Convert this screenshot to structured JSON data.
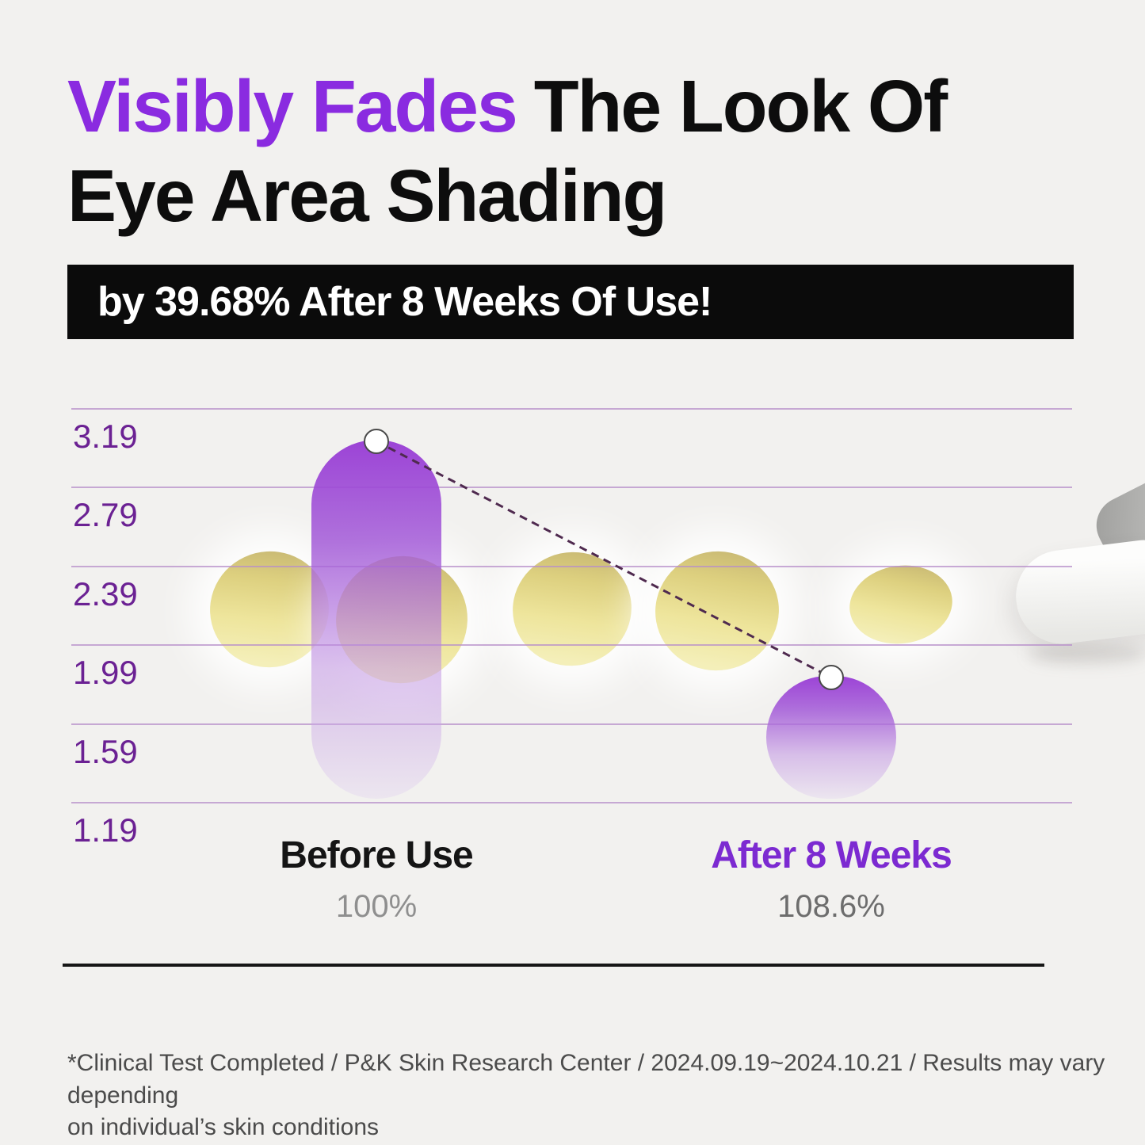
{
  "title": {
    "highlight": "Visibly Fades",
    "rest_line1": "The Look Of",
    "line2": "Eye Area Shading"
  },
  "banner": {
    "text": "by 39.68% After 8 Weeks Of Use!"
  },
  "chart_data": {
    "type": "bar",
    "categories": [
      "Before Use",
      "After 8 Weeks"
    ],
    "series": [
      {
        "name": "Eye area shading level",
        "values": [
          3.03,
          1.83
        ]
      }
    ],
    "value_sublabels": [
      "100%",
      "108.6%"
    ],
    "yticks": [
      "3.19",
      "2.79",
      "2.39",
      "1.99",
      "1.59",
      "1.19"
    ],
    "ylim": [
      1.19,
      3.19
    ],
    "grid": true,
    "legend_position": "none",
    "annotations": [
      "dashed trend line connecting the two data-point markers"
    ],
    "title": "Visibly Fades The Look Of Eye Area Shading by 39.68% After 8 Weeks Of Use!"
  },
  "decorations": {
    "balm_dabs": "five pale-yellow balm swatches behind the chart",
    "applicator": "white cosmetic applicator tip entering from right edge"
  },
  "colors": {
    "background": "#F2F1EF",
    "title_accent": "#8A2BE0",
    "title_text": "#0D0D0D",
    "banner_bg": "#0B0B0B",
    "banner_text": "#FFFFFF",
    "bar_purple_top": "#983CD5",
    "bar_purple_bottom": "#DFCEF0",
    "tick_label": "#6B2193",
    "gridline": "#B78FC9",
    "trend_line": "#4F2A4F",
    "category_before": "#151515",
    "category_after": "#7C2AD1",
    "sublabel_gray": "#8F8F8F",
    "footnote_gray": "#4B4B4B",
    "balm_yellow": "#EEE59C"
  },
  "footnote": {
    "line1": "*Clinical Test Completed / P&K Skin Research Center / 2024.09.19~2024.10.21 / Results may vary depending",
    "line2": "on individual’s skin conditions"
  }
}
